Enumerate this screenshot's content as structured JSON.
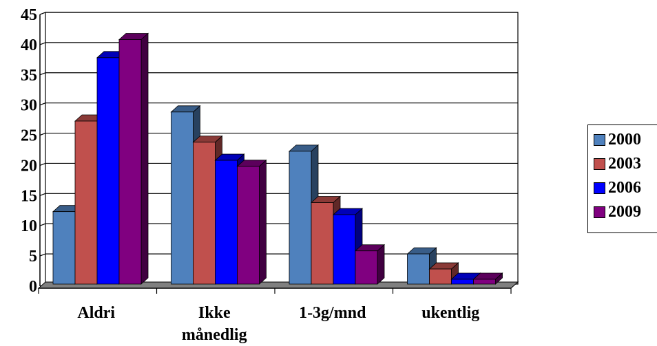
{
  "chart_data": {
    "type": "bar",
    "categories": [
      [
        "Aldri"
      ],
      [
        "Ikke",
        "månedlig"
      ],
      [
        "1-3g/mnd"
      ],
      [
        "ukentlig"
      ]
    ],
    "series": [
      {
        "name": "2000",
        "color": "#4f81bd",
        "values": [
          12,
          28.5,
          22,
          5
        ]
      },
      {
        "name": "2003",
        "color": "#c0504d",
        "values": [
          27,
          23.5,
          13.5,
          2.5
        ]
      },
      {
        "name": "2006",
        "color": "#0000ff",
        "values": [
          37.5,
          20.5,
          11.5,
          0.8
        ]
      },
      {
        "name": "2009",
        "color": "#800080",
        "values": [
          40.5,
          19.5,
          5.5,
          0.8
        ]
      }
    ],
    "ylim": [
      0,
      45
    ],
    "yticks": [
      "0",
      "5",
      "10",
      "15",
      "20",
      "25",
      "30",
      "35",
      "40",
      "45"
    ],
    "grid": true,
    "legend_position": "right"
  }
}
